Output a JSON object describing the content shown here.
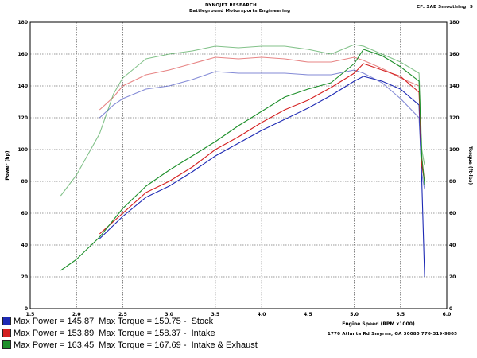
{
  "header": {
    "title": "DYNOJET RESEARCH",
    "subtitle": "Battleground Motorsports Engineering",
    "corner": "CF: SAE  Smoothing: 5"
  },
  "address": "1770 Atlanta Rd Smyrna, GA 30080 770-319-9605",
  "legend": [
    {
      "text": "Max Power = 145.87  Max Torque = 150.75 -  Stock",
      "color": "#1e2ab4"
    },
    {
      "text": "Max Power = 153.89  Max Torque = 158.37 -  Intake",
      "color": "#d42020"
    },
    {
      "text": "Max Power = 163.45  Max Torque = 167.69 -  Intake & Exhaust",
      "color": "#1d8f2a"
    }
  ],
  "chart_data": {
    "type": "line",
    "xlabel": "Engine Speed (RPM x1000)",
    "ylabel_left": "Power (hp)",
    "ylabel_right": "Torque (ft-lbs)",
    "xlim": [
      1.5,
      6.0
    ],
    "ylim": [
      0,
      180
    ],
    "x_ticks": [
      "1.5",
      "2.0",
      "2.5",
      "3.0",
      "3.5",
      "4.0",
      "4.5",
      "5.0",
      "5.5",
      "6.0"
    ],
    "y_ticks": [
      "0",
      "20",
      "40",
      "60",
      "80",
      "100",
      "120",
      "140",
      "160",
      "180"
    ],
    "grid": true,
    "series": [
      {
        "name": "Stock Power",
        "color": "#1e2ab4",
        "x": [
          2.25,
          2.5,
          2.75,
          3.0,
          3.25,
          3.5,
          3.75,
          4.0,
          4.25,
          4.5,
          4.75,
          5.0,
          5.1,
          5.3,
          5.5,
          5.7,
          5.73,
          5.76
        ],
        "y": [
          44,
          58,
          70,
          77,
          86,
          96,
          104,
          112,
          119,
          126,
          134,
          143,
          146,
          143,
          138,
          128,
          80,
          20
        ]
      },
      {
        "name": "Stock Torque",
        "color": "#1e2ab4",
        "x": [
          2.25,
          2.4,
          2.5,
          2.75,
          3.0,
          3.25,
          3.5,
          3.75,
          4.0,
          4.25,
          4.5,
          4.75,
          5.0,
          5.1,
          5.3,
          5.5,
          5.7,
          5.73,
          5.76
        ],
        "y": [
          120,
          128,
          132,
          138,
          140,
          144,
          149,
          148,
          148,
          148,
          147,
          147,
          150,
          148,
          142,
          132,
          120,
          85,
          75
        ]
      },
      {
        "name": "Intake Power",
        "color": "#d42020",
        "x": [
          2.25,
          2.5,
          2.75,
          3.0,
          3.25,
          3.5,
          3.75,
          4.0,
          4.25,
          4.5,
          4.75,
          5.0,
          5.1,
          5.3,
          5.5,
          5.7,
          5.73,
          5.76
        ],
        "y": [
          47,
          60,
          73,
          80,
          89,
          100,
          108,
          117,
          125,
          131,
          139,
          148,
          154,
          150,
          146,
          136,
          90,
          80
        ]
      },
      {
        "name": "Intake Torque",
        "color": "#d42020",
        "x": [
          2.25,
          2.4,
          2.5,
          2.75,
          3.0,
          3.25,
          3.5,
          3.75,
          4.0,
          4.25,
          4.5,
          4.75,
          5.0,
          5.1,
          5.3,
          5.5,
          5.7,
          5.73,
          5.76
        ],
        "y": [
          125,
          133,
          140,
          147,
          150,
          154,
          158,
          157,
          158,
          157,
          155,
          155,
          158,
          156,
          151,
          145,
          140,
          95,
          80
        ]
      },
      {
        "name": "Intake & Exhaust Power",
        "color": "#1d8f2a",
        "x": [
          1.83,
          2.0,
          2.25,
          2.5,
          2.75,
          3.0,
          3.25,
          3.5,
          3.75,
          4.0,
          4.25,
          4.5,
          4.75,
          5.0,
          5.1,
          5.3,
          5.5,
          5.7,
          5.73,
          5.76
        ],
        "y": [
          24,
          31,
          45,
          63,
          77,
          87,
          96,
          105,
          115,
          124,
          133,
          138,
          142,
          154,
          163,
          159,
          152,
          143,
          95,
          78
        ]
      },
      {
        "name": "Intake & Exhaust Torque",
        "color": "#1d8f2a",
        "x": [
          1.83,
          2.0,
          2.25,
          2.4,
          2.5,
          2.75,
          3.0,
          3.25,
          3.5,
          3.75,
          4.0,
          4.25,
          4.5,
          4.75,
          5.0,
          5.1,
          5.3,
          5.5,
          5.7,
          5.73,
          5.76
        ],
        "y": [
          71,
          84,
          110,
          135,
          145,
          157,
          160,
          162,
          165,
          164,
          165,
          165,
          163,
          160,
          166,
          165,
          160,
          155,
          148,
          100,
          90
        ]
      }
    ]
  }
}
